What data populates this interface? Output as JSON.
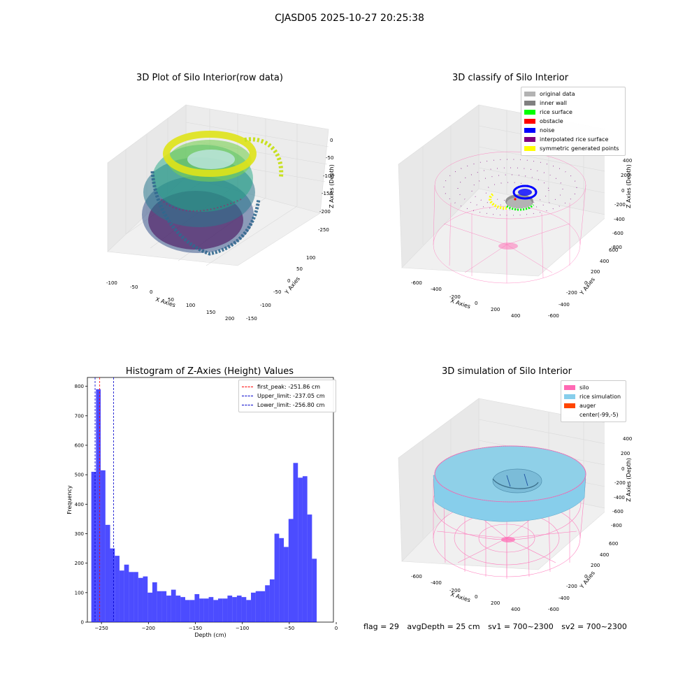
{
  "suptitle": "CJASD05 2025-10-27 20:25:38",
  "panels": {
    "raw": {
      "title": "3D Plot of Silo Interior(row data)",
      "xlabel": "X Axies",
      "ylabel": "Y Axies",
      "zlabel": "Z Axies (Depth)",
      "xticks": [
        "-100",
        "-50",
        "0",
        "50",
        "100",
        "150",
        "200"
      ],
      "yticks": [
        "100",
        "50",
        "0",
        "-50",
        "-100",
        "-150"
      ],
      "zticks": [
        "0",
        "-50",
        "-100",
        "-150",
        "-200",
        "-250"
      ]
    },
    "classify": {
      "title": "3D classify of Silo Interior",
      "xlabel": "X Axies",
      "ylabel": "Y Axies",
      "zlabel": "Z Axies (Depth)",
      "xticks": [
        "-600",
        "-400",
        "-200",
        "0",
        "200",
        "400"
      ],
      "yticks": [
        "600",
        "400",
        "200",
        "0",
        "-200",
        "-400",
        "-600"
      ],
      "zticks": [
        "400",
        "200",
        "0",
        "-200",
        "-400",
        "-600",
        "-800"
      ],
      "legend": [
        {
          "label": "original data",
          "color": "#b3b3b3"
        },
        {
          "label": "inner wall",
          "color": "#808080"
        },
        {
          "label": "rice surface",
          "color": "#00ff00"
        },
        {
          "label": "obstacle",
          "color": "#ff0000"
        },
        {
          "label": "noise",
          "color": "#0000ff"
        },
        {
          "label": "interpolated rice surface",
          "color": "#800080"
        },
        {
          "label": "symmetric generated points",
          "color": "#ffff00"
        }
      ]
    },
    "simulation": {
      "title": "3D simulation of Silo Interior",
      "xlabel": "X Axies",
      "ylabel": "Y Axies",
      "zlabel": "Z Axies (Depth)",
      "xticks": [
        "-600",
        "-400",
        "-200",
        "0",
        "200",
        "400"
      ],
      "yticks": [
        "600",
        "400",
        "200",
        "0",
        "-200",
        "-400",
        "-600"
      ],
      "zticks": [
        "400",
        "200",
        "0",
        "-200",
        "-400",
        "-600",
        "-800"
      ],
      "legend": [
        {
          "label": "silo",
          "color": "#ff69b4"
        },
        {
          "label": "rice simulation",
          "color": "#87ceeb"
        },
        {
          "label": "auger",
          "color": "#ff4500"
        },
        {
          "label": "center(-99,-5)",
          "color": "#ffffff"
        }
      ]
    }
  },
  "footer": {
    "flag": "flag = 29",
    "avg_depth": "avgDepth = 25 cm",
    "sv1": "sv1 = 700~2300",
    "sv2": "sv2 = 700~2300"
  },
  "chart_data": {
    "type": "bar",
    "title": "Histogram of Z-Axies (Height) Values",
    "xlabel": "Depth (cm)",
    "ylabel": "Frequency",
    "xlim": [
      -265,
      -3
    ],
    "ylim": [
      0,
      830
    ],
    "xticks": [
      -250,
      -200,
      -150,
      -100,
      -50,
      0
    ],
    "yticks": [
      0,
      100,
      200,
      300,
      400,
      500,
      600,
      700,
      800
    ],
    "bar_color": "#0000ff",
    "bin_start": -260.8,
    "bin_width": 5.0,
    "values": [
      510,
      790,
      515,
      330,
      250,
      225,
      175,
      195,
      170,
      170,
      150,
      155,
      100,
      135,
      105,
      105,
      90,
      110,
      90,
      85,
      75,
      75,
      95,
      80,
      80,
      85,
      75,
      80,
      80,
      90,
      85,
      90,
      85,
      75,
      100,
      105,
      105,
      125,
      145,
      300,
      285,
      255,
      350,
      540,
      490,
      495,
      365,
      215
    ],
    "lines": [
      {
        "label": "first_peak: -251.86 cm",
        "x": -251.86,
        "color": "#ff0000"
      },
      {
        "label": "Upper_limit: -237.05 cm",
        "x": -237.05,
        "color": "#0000cc"
      },
      {
        "label": "Lower_limit: -256.80 cm",
        "x": -256.8,
        "color": "#0000cc"
      }
    ]
  }
}
